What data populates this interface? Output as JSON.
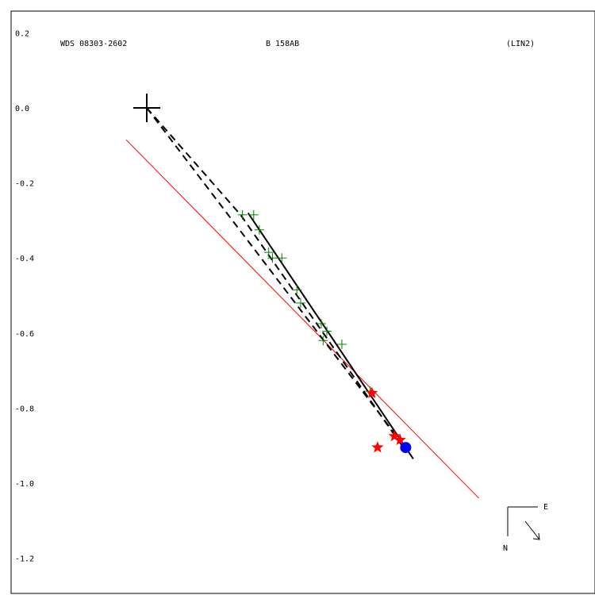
{
  "header": {
    "left": "WDS 08303-2602",
    "center": "B   158AB",
    "right": "(LIN2)"
  },
  "compass": {
    "east": "E",
    "north": "N"
  },
  "colors": {
    "frame": "#000000",
    "observations": "#008000",
    "speckle": "#ff0000",
    "predicted": "#0000ff",
    "fit_line": "#ff0000",
    "motion": "#000000"
  },
  "chart_data": {
    "type": "scatter",
    "title": "",
    "xlabel": "",
    "ylabel": "",
    "ylim": [
      -1.2,
      0.2
    ],
    "xlim": [
      -0.35,
      1.2
    ],
    "y_ticks": [
      0.2,
      0.0,
      -0.2,
      -0.4,
      -0.6,
      -0.8,
      -1.0,
      -1.2
    ],
    "y_tick_labels": [
      "0.2",
      "0.0",
      "-0.2",
      "-0.4",
      "-0.6",
      "-0.8",
      "-1.0",
      "-1.2"
    ],
    "grid": false,
    "primary": {
      "x": 0.0,
      "y": 0.0
    },
    "series": [
      {
        "marker": "plus",
        "points": [
          [
            0.255,
            -0.285
          ],
          [
            0.285,
            -0.285
          ],
          [
            0.3,
            -0.325
          ],
          [
            0.325,
            -0.385
          ],
          [
            0.335,
            -0.4
          ],
          [
            0.36,
            -0.4
          ],
          [
            0.4,
            -0.485
          ],
          [
            0.41,
            -0.52
          ],
          [
            0.465,
            -0.575
          ],
          [
            0.48,
            -0.595
          ],
          [
            0.47,
            -0.62
          ],
          [
            0.52,
            -0.63
          ],
          [
            0.595,
            -0.755
          ]
        ]
      },
      {
        "marker": "star",
        "points": [
          [
            0.6,
            -0.76
          ],
          [
            0.66,
            -0.875
          ],
          [
            0.675,
            -0.885
          ],
          [
            0.615,
            -0.905
          ]
        ]
      },
      {
        "marker": "dot",
        "points": [
          [
            0.69,
            -0.905
          ]
        ]
      }
    ],
    "fit_line": [
      [
        -0.055,
        -0.085
      ],
      [
        0.885,
        -1.04
      ]
    ],
    "motion_line": [
      [
        0.27,
        -0.28
      ],
      [
        0.71,
        -0.935
      ]
    ],
    "dashed_paths": [
      [
        [
          0.0,
          0.0
        ],
        [
          0.685,
          -0.9
        ]
      ],
      [
        [
          0.0,
          0.0
        ],
        [
          0.25,
          -0.285
        ],
        [
          0.68,
          -0.9
        ]
      ]
    ]
  }
}
